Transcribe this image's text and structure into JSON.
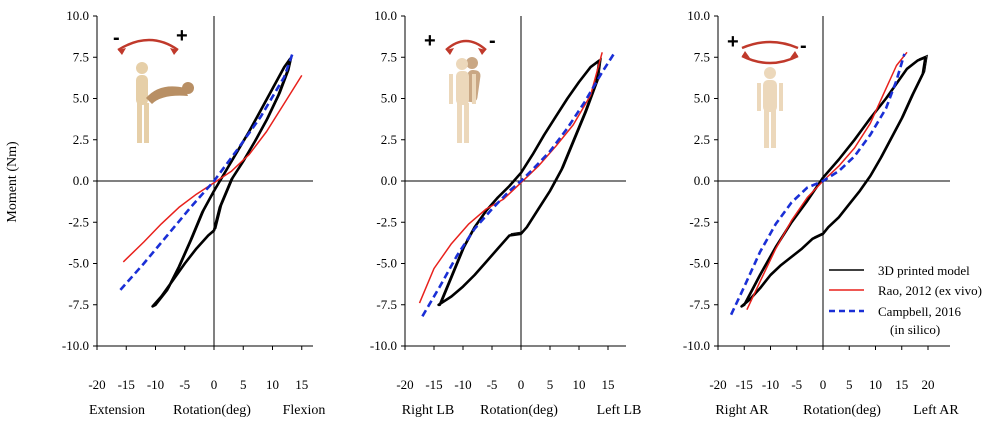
{
  "figure": {
    "ylabel": "Moment (Nm)",
    "legend": {
      "placement": "bottom-right of third panel",
      "entries": [
        "3D printed model",
        "Rao, 2012 (ex vivo)",
        "Campbell, 2016",
        "(in silico)"
      ]
    }
  },
  "panels": [
    {
      "caption_left": "Extension",
      "caption_mid": "Rotation(deg)",
      "caption_right": "Flexion",
      "icon_left_sign": "-",
      "icon_right_sign": "+",
      "icon": "flexion-extension-figure-icon",
      "x_ticks": [
        "-20",
        "-15",
        "-10",
        "-5",
        "0",
        "5",
        "10",
        "15"
      ],
      "y_ticks": [
        "10.0",
        "7.5",
        "5.0",
        "2.5",
        "0.0",
        "-2.5",
        "-5.0",
        "-7.5",
        "-10.0"
      ]
    },
    {
      "caption_left": "Right LB",
      "caption_mid": "Rotation(deg)",
      "caption_right": "Left LB",
      "icon_left_sign": "+",
      "icon_right_sign": "-",
      "icon": "lateral-bending-figure-icon",
      "x_ticks": [
        "-20",
        "-15",
        "-10",
        "-5",
        "0",
        "5",
        "10",
        "15"
      ],
      "y_ticks": [
        "10.0",
        "7.5",
        "5.0",
        "2.5",
        "0.0",
        "-2.5",
        "-5.0",
        "-7.5",
        "-10.0"
      ]
    },
    {
      "caption_left": "Right AR",
      "caption_mid": "Rotation(deg)",
      "caption_right": "Left AR",
      "icon_left_sign": "+",
      "icon_right_sign": "-",
      "icon": "axial-rotation-figure-icon",
      "x_ticks": [
        "-20",
        "-15",
        "-10",
        "-5",
        "0",
        "5",
        "10",
        "15",
        "20"
      ],
      "y_ticks": [
        "10.0",
        "7.5",
        "5.0",
        "2.5",
        "0.0",
        "-2.5",
        "-5.0",
        "-7.5",
        "-10.0"
      ]
    }
  ],
  "colors": {
    "model": "#000000",
    "rao": "#e8211c",
    "campbell": "#1a2fd6"
  },
  "chart_data": [
    {
      "type": "line",
      "xlabel": "Rotation(deg)",
      "ylabel": "Moment (Nm)",
      "xlim": [
        -20,
        15
      ],
      "ylim": [
        -10,
        10
      ],
      "grid": false,
      "series": [
        {
          "name": "3D printed model",
          "kind": "loop",
          "x": [
            -10,
            -8,
            -6,
            -4,
            -2,
            0,
            2,
            4,
            6,
            8,
            10,
            12,
            13,
            12.5,
            11,
            9,
            7,
            5,
            3,
            1,
            0,
            -1,
            -3,
            -5,
            -7,
            -9,
            -10.5,
            -10
          ],
          "y": [
            -7.5,
            -6.6,
            -5.2,
            -3.6,
            -1.9,
            -0.6,
            0.6,
            1.8,
            3.0,
            4.3,
            5.6,
            6.9,
            7.4,
            6.6,
            5.2,
            3.7,
            2.4,
            1.2,
            0.1,
            -1.6,
            -3.0,
            -3.3,
            -4.1,
            -5.0,
            -6.0,
            -7.0,
            -7.6,
            -7.5
          ]
        },
        {
          "name": "Rao, 2012 (ex vivo)",
          "x": [
            -15.5,
            -12,
            -9,
            -6,
            -3,
            0,
            3,
            6,
            9,
            12,
            15
          ],
          "y": [
            -4.9,
            -3.7,
            -2.6,
            -1.6,
            -0.8,
            -0.1,
            0.6,
            1.6,
            3.0,
            4.7,
            6.4
          ]
        },
        {
          "name": "Campbell, 2016 (in silico)",
          "x": [
            -16,
            -12,
            -8,
            -4,
            0,
            4,
            8,
            12,
            13.5
          ],
          "y": [
            -6.6,
            -5.0,
            -3.3,
            -1.6,
            0.0,
            1.9,
            3.9,
            6.3,
            7.8
          ]
        }
      ]
    },
    {
      "type": "line",
      "xlabel": "Rotation(deg)",
      "ylabel": "Moment (Nm)",
      "xlim": [
        -20,
        16
      ],
      "ylim": [
        -10,
        10
      ],
      "grid": false,
      "series": [
        {
          "name": "3D printed model",
          "kind": "loop",
          "x": [
            -14,
            -12,
            -10,
            -8,
            -6,
            -4,
            -2,
            0,
            2,
            4,
            6,
            8,
            10,
            12,
            13.5,
            13,
            11,
            9,
            7,
            5,
            3,
            1,
            0,
            -2,
            -4,
            -6,
            -8,
            -10,
            -12,
            -14.2,
            -14
          ],
          "y": [
            -7.5,
            -5.8,
            -4.1,
            -2.8,
            -1.8,
            -1.0,
            -0.3,
            0.5,
            1.6,
            2.8,
            3.9,
            5.0,
            6.0,
            6.9,
            7.3,
            6.0,
            4.1,
            2.4,
            0.7,
            -0.6,
            -1.7,
            -2.8,
            -3.2,
            -3.3,
            -4.1,
            -4.9,
            -5.7,
            -6.4,
            -7.0,
            -7.5,
            -7.5
          ]
        },
        {
          "name": "Rao, 2012 (ex vivo)",
          "x": [
            -17.5,
            -15,
            -12,
            -9,
            -6,
            -3,
            0,
            3,
            6,
            9,
            12,
            14
          ],
          "y": [
            -7.4,
            -5.3,
            -3.8,
            -2.6,
            -1.7,
            -1.1,
            -0.1,
            0.9,
            2.1,
            3.4,
            5.2,
            7.8
          ]
        },
        {
          "name": "Campbell, 2016 (in silico)",
          "x": [
            -17,
            -14,
            -11,
            -8,
            -5,
            -2,
            0,
            2,
            5,
            8,
            11,
            14,
            16
          ],
          "y": [
            -8.2,
            -6.4,
            -4.5,
            -2.9,
            -1.7,
            -0.6,
            0.0,
            0.7,
            1.8,
            3.2,
            4.8,
            6.6,
            7.7
          ]
        }
      ]
    },
    {
      "type": "line",
      "xlabel": "Rotation(deg)",
      "ylabel": "Moment (Nm)",
      "xlim": [
        -20,
        21
      ],
      "ylim": [
        -10,
        10
      ],
      "grid": false,
      "series": [
        {
          "name": "3D printed model",
          "kind": "loop",
          "x": [
            -15,
            -12,
            -9,
            -6,
            -3,
            0,
            3,
            6,
            9,
            12,
            14,
            16,
            18,
            19.5,
            19,
            17,
            15,
            13,
            11,
            9,
            7,
            5,
            3,
            1,
            0,
            -2,
            -4,
            -6,
            -8,
            -10,
            -12,
            -14,
            -15.5,
            -15
          ],
          "y": [
            -7.5,
            -5.7,
            -4.0,
            -2.5,
            -1.2,
            0.2,
            1.3,
            2.5,
            3.8,
            5.0,
            5.9,
            6.8,
            7.3,
            7.5,
            6.5,
            5.2,
            3.8,
            2.6,
            1.4,
            0.3,
            -0.6,
            -1.4,
            -2.2,
            -2.8,
            -3.2,
            -3.5,
            -4.1,
            -4.6,
            -5.1,
            -5.7,
            -6.5,
            -7.2,
            -7.6,
            -7.5
          ]
        },
        {
          "name": "Rao, 2012 (ex vivo)",
          "x": [
            -14.5,
            -12,
            -9,
            -6,
            -3,
            0,
            3,
            6,
            9,
            12,
            14,
            16
          ],
          "y": [
            -7.8,
            -6.1,
            -4.1,
            -2.4,
            -1.0,
            0.0,
            0.9,
            2.0,
            3.5,
            5.6,
            7.0,
            7.8
          ]
        },
        {
          "name": "Campbell, 2016 (in silico)",
          "x": [
            -17.5,
            -15,
            -12,
            -9,
            -6,
            -3,
            0,
            3,
            6,
            9,
            12,
            14,
            15.5
          ],
          "y": [
            -8.1,
            -6.4,
            -4.3,
            -2.6,
            -1.3,
            -0.4,
            0.0,
            0.6,
            1.5,
            2.8,
            4.4,
            6.1,
            7.7
          ]
        }
      ]
    }
  ]
}
